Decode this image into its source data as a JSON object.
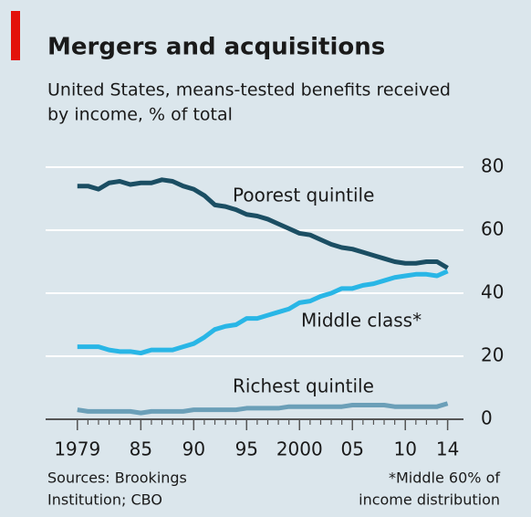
{
  "chart_data": {
    "type": "line",
    "title": "Mergers and acquisitions",
    "subtitle": [
      "United States, means-tested benefits received",
      "by income, % of total"
    ],
    "x": [
      1979,
      1980,
      1981,
      1982,
      1983,
      1984,
      1985,
      1986,
      1987,
      1988,
      1989,
      1990,
      1991,
      1992,
      1993,
      1994,
      1995,
      1996,
      1997,
      1998,
      1999,
      2000,
      2001,
      2002,
      2003,
      2004,
      2005,
      2006,
      2007,
      2008,
      2009,
      2010,
      2011,
      2012,
      2013,
      2014
    ],
    "series": [
      {
        "name": "Poorest quintile",
        "color": "#1b4e63",
        "values": [
          74,
          74,
          73,
          75,
          75.5,
          74.5,
          75,
          75,
          76,
          75.5,
          74,
          73,
          71,
          68,
          67.5,
          66.5,
          65,
          64.5,
          63.5,
          62,
          60.5,
          59,
          58.5,
          57,
          55.5,
          54.5,
          54,
          53,
          52,
          51,
          50,
          49.5,
          49.5,
          50,
          50,
          48
        ]
      },
      {
        "name": "Middle class*",
        "color": "#29b6e6",
        "values": [
          23,
          23,
          23,
          22,
          21.5,
          21.5,
          21,
          22,
          22,
          22,
          23,
          24,
          26,
          28.5,
          29.5,
          30,
          32,
          32,
          33,
          34,
          35,
          37,
          37.5,
          39,
          40,
          41.5,
          41.5,
          42.5,
          43,
          44,
          45,
          45.5,
          46,
          46,
          45.5,
          47
        ]
      },
      {
        "name": "Richest quintile",
        "color": "#6b9fb8",
        "values": [
          3,
          2.5,
          2.5,
          2.5,
          2.5,
          2.5,
          2,
          2.5,
          2.5,
          2.5,
          2.5,
          3,
          3,
          3,
          3,
          3,
          3.5,
          3.5,
          3.5,
          3.5,
          4,
          4,
          4,
          4,
          4,
          4,
          4.5,
          4.5,
          4.5,
          4.5,
          4,
          4,
          4,
          4,
          4,
          5
        ]
      }
    ],
    "xlim": [
      1976,
      2015.5
    ],
    "xticks": [
      1979,
      {
        "value": 1985,
        "label": "85"
      },
      {
        "value": 1990,
        "label": "90"
      },
      {
        "value": 1995,
        "label": "95"
      },
      2000,
      {
        "value": 2005,
        "label": "05"
      },
      {
        "value": 2010,
        "label": "10"
      },
      {
        "value": 2014,
        "label": "14"
      }
    ],
    "ylim": [
      0,
      80
    ],
    "yticks": [
      0,
      20,
      40,
      60,
      80
    ],
    "grid": true,
    "source": [
      "Sources: Brookings",
      "Institution; CBO"
    ],
    "footnote": [
      "*Middle 60% of",
      "income distribution"
    ]
  }
}
